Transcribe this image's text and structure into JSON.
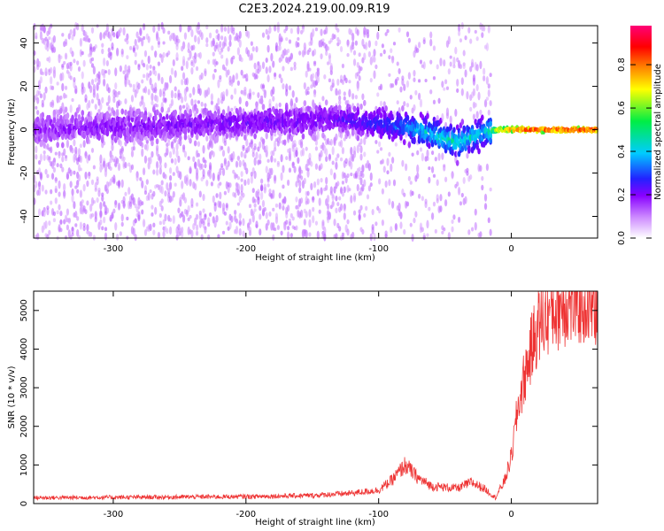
{
  "title": "C2E3.2024.219.00.09.R19",
  "colors": {
    "snr_line": "#ee3333",
    "spectrogram_palette": [
      "#ffffff",
      "#cc88ff",
      "#8800ff",
      "#2222ff",
      "#00ccff",
      "#00ee44",
      "#ffff00",
      "#ff8800",
      "#ff0000",
      "#ff0077"
    ]
  },
  "chart_data": [
    {
      "type": "heatmap",
      "title": "",
      "xlabel": "Height of straight line (km)",
      "ylabel": "Frequency (Hz)",
      "xlim": [
        -360,
        65
      ],
      "ylim": [
        -50,
        48
      ],
      "x_ticks": [
        -300,
        -200,
        -100,
        0
      ],
      "y_ticks": [
        40,
        20,
        0,
        -20,
        -40
      ],
      "grid": false,
      "description_of_ridge": [
        {
          "x": -360,
          "f": 0,
          "amp": 0.2
        },
        {
          "x": -130,
          "f": 5,
          "amp": 0.25
        },
        {
          "x": -90,
          "f": 2,
          "amp": 0.35
        },
        {
          "x": -70,
          "f": 0,
          "amp": 0.45
        },
        {
          "x": -40,
          "f": -6,
          "amp": 0.5
        },
        {
          "x": -20,
          "f": -1,
          "amp": 0.45
        },
        {
          "x": -10,
          "f": 0,
          "amp": 0.7
        },
        {
          "x": 10,
          "f": 0,
          "amp": 0.85
        },
        {
          "x": 65,
          "f": 0,
          "amp": 0.85
        }
      ]
    },
    {
      "type": "line",
      "title": "",
      "xlabel": "Height of straight line (km)",
      "ylabel": "SNR (10 * v/v)",
      "xlim": [
        -360,
        65
      ],
      "ylim": [
        0,
        5500
      ],
      "x_ticks": [
        -300,
        -200,
        -100,
        0
      ],
      "y_ticks": [
        0,
        1000,
        2000,
        3000,
        4000,
        5000
      ],
      "grid": false,
      "series": [
        {
          "x": [
            -360,
            -300,
            -250,
            -200,
            -150,
            -120,
            -100,
            -90,
            -80,
            -70,
            -60,
            -50,
            -40,
            -30,
            -20,
            -12,
            -5,
            0,
            5,
            10,
            15,
            20,
            30,
            40,
            50,
            65
          ],
          "y": [
            150,
            160,
            170,
            180,
            210,
            270,
            350,
            600,
            1000,
            650,
            450,
            420,
            400,
            550,
            380,
            150,
            600,
            1200,
            2500,
            3300,
            4000,
            4600,
            5000,
            5200,
            5250,
            5200
          ]
        }
      ]
    }
  ],
  "colorbar": {
    "label": "Normalized spectral amplitude",
    "range": [
      0.0,
      0.98
    ],
    "ticks": [
      0.0,
      0.2,
      0.4,
      0.6,
      0.8
    ]
  }
}
